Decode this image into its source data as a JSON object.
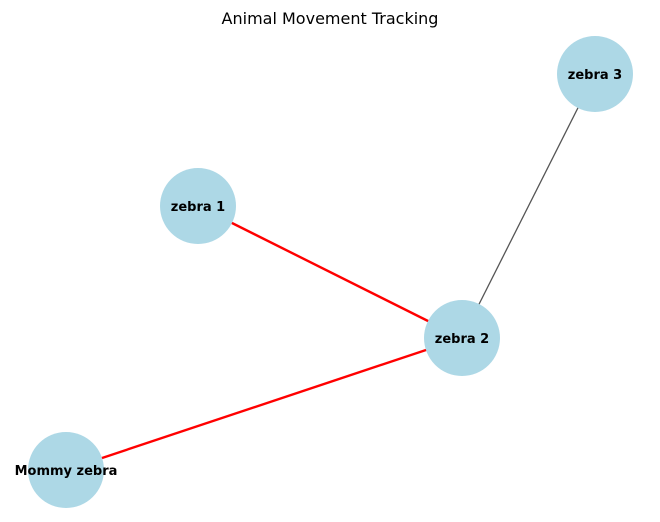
{
  "title": "Animal Movement Tracking",
  "colors": {
    "node_fill": "#add8e6",
    "highlight_edge": "#ff0000",
    "normal_edge": "#555555",
    "label_text": "#000000"
  },
  "nodes": [
    {
      "id": "zebra_1",
      "label": "zebra 1"
    },
    {
      "id": "zebra_2",
      "label": "zebra 2"
    },
    {
      "id": "zebra_3",
      "label": "zebra 3"
    },
    {
      "id": "mommy_zebra",
      "label": "Mommy zebra"
    }
  ],
  "edges": [
    {
      "source": "zebra_1",
      "target": "zebra_2",
      "style": "highlight"
    },
    {
      "source": "mommy_zebra",
      "target": "zebra_2",
      "style": "highlight"
    },
    {
      "source": "zebra_2",
      "target": "zebra_3",
      "style": "normal"
    }
  ]
}
